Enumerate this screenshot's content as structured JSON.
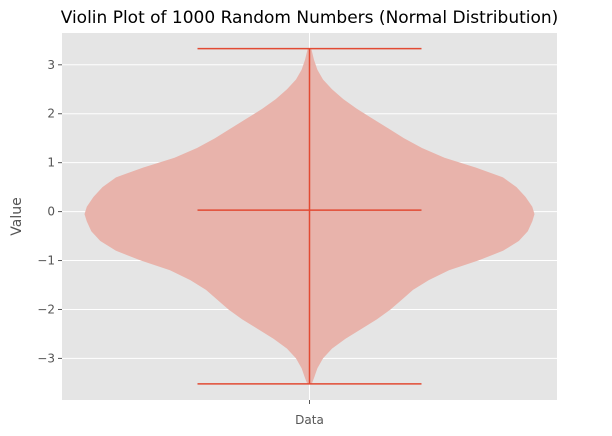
{
  "chart_data": {
    "type": "violin",
    "title": "Violin Plot of 1000 Random Numbers (Normal Distribution)",
    "xlabel": "",
    "ylabel": "Value",
    "categories": [
      "Data"
    ],
    "ylim": [
      -3.85,
      3.65
    ],
    "yticks": [
      -3,
      -2,
      -1,
      0,
      1,
      2,
      3
    ],
    "grid": true,
    "style": "ggplot",
    "stats": {
      "min": -3.52,
      "max": 3.33,
      "median": 0.03
    },
    "density": [
      {
        "y": -3.52,
        "w": 0.01
      },
      {
        "y": -3.4,
        "w": 0.02
      },
      {
        "y": -3.2,
        "w": 0.035
      },
      {
        "y": -3.0,
        "w": 0.06
      },
      {
        "y": -2.8,
        "w": 0.1
      },
      {
        "y": -2.6,
        "w": 0.16
      },
      {
        "y": -2.4,
        "w": 0.23
      },
      {
        "y": -2.2,
        "w": 0.3
      },
      {
        "y": -2.0,
        "w": 0.36
      },
      {
        "y": -1.8,
        "w": 0.41
      },
      {
        "y": -1.6,
        "w": 0.46
      },
      {
        "y": -1.4,
        "w": 0.53
      },
      {
        "y": -1.2,
        "w": 0.62
      },
      {
        "y": -1.0,
        "w": 0.75
      },
      {
        "y": -0.8,
        "w": 0.86
      },
      {
        "y": -0.6,
        "w": 0.93
      },
      {
        "y": -0.4,
        "w": 0.97
      },
      {
        "y": -0.2,
        "w": 0.99
      },
      {
        "y": -0.05,
        "w": 1.0
      },
      {
        "y": 0.1,
        "w": 0.99
      },
      {
        "y": 0.3,
        "w": 0.96
      },
      {
        "y": 0.5,
        "w": 0.92
      },
      {
        "y": 0.7,
        "w": 0.86
      },
      {
        "y": 0.9,
        "w": 0.74
      },
      {
        "y": 1.1,
        "w": 0.6
      },
      {
        "y": 1.3,
        "w": 0.5
      },
      {
        "y": 1.5,
        "w": 0.42
      },
      {
        "y": 1.7,
        "w": 0.35
      },
      {
        "y": 1.9,
        "w": 0.28
      },
      {
        "y": 2.1,
        "w": 0.21
      },
      {
        "y": 2.3,
        "w": 0.15
      },
      {
        "y": 2.5,
        "w": 0.1
      },
      {
        "y": 2.7,
        "w": 0.06
      },
      {
        "y": 2.9,
        "w": 0.035
      },
      {
        "y": 3.1,
        "w": 0.02
      },
      {
        "y": 3.33,
        "w": 0.008
      }
    ],
    "colors": {
      "background": "#e5e5e5",
      "grid": "#ffffff",
      "body": "#e8b3ab",
      "lines": "#e24a33"
    }
  }
}
